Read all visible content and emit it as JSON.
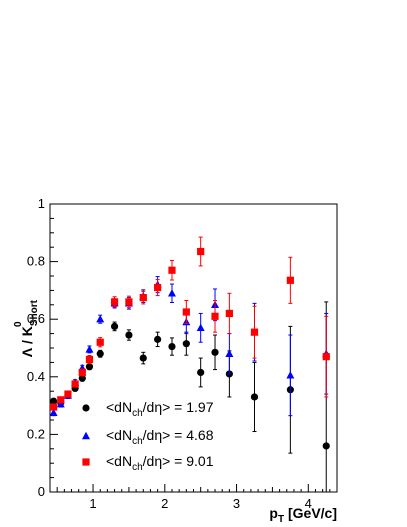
{
  "chart_data": {
    "type": "scatter",
    "title": "",
    "xlabel": "p_T [GeV/c]",
    "ylabel": "Λ / K⁰_Short",
    "xlim": [
      0.4,
      4.4
    ],
    "ylim": [
      0,
      1
    ],
    "x_ticks": [
      1,
      2,
      3,
      4
    ],
    "y_ticks": [
      0,
      0.2,
      0.4,
      0.6,
      0.8,
      1
    ],
    "y_tick_labels": [
      "0",
      "0.2",
      "0.4",
      "0.6",
      "0.8",
      "1"
    ],
    "grid": false,
    "legend_position": "bottom-left",
    "series": [
      {
        "name": "<dN_ch/dη> = 1.97",
        "marker": "circle",
        "color": "#000000",
        "x": [
          0.45,
          0.55,
          0.65,
          0.75,
          0.85,
          0.95,
          1.1,
          1.3,
          1.5,
          1.7,
          1.9,
          2.1,
          2.3,
          2.5,
          2.7,
          2.9,
          3.25,
          3.75,
          4.25
        ],
        "y": [
          0.315,
          0.31,
          0.335,
          0.36,
          0.395,
          0.435,
          0.48,
          0.575,
          0.545,
          0.465,
          0.53,
          0.505,
          0.515,
          0.415,
          0.485,
          0.41,
          0.33,
          0.355,
          0.16
        ],
        "err": [
          0.01,
          0.01,
          0.01,
          0.01,
          0.01,
          0.01,
          0.012,
          0.015,
          0.018,
          0.02,
          0.025,
          0.03,
          0.04,
          0.05,
          0.06,
          0.08,
          0.12,
          0.22,
          0.5
        ]
      },
      {
        "name": "<dN_ch/dη> = 4.68",
        "marker": "triangle",
        "color": "#0000ff",
        "x": [
          0.45,
          0.55,
          0.65,
          0.75,
          0.85,
          0.95,
          1.1,
          1.3,
          1.5,
          1.7,
          1.9,
          2.1,
          2.3,
          2.5,
          2.7,
          2.9,
          3.25,
          3.75,
          4.25
        ],
        "y": [
          0.275,
          0.305,
          0.335,
          0.38,
          0.43,
          0.495,
          0.6,
          0.655,
          0.655,
          0.68,
          0.72,
          0.69,
          0.59,
          0.57,
          0.65,
          0.48,
          0.555,
          0.405,
          0.48
        ],
        "err": [
          0.01,
          0.01,
          0.01,
          0.01,
          0.01,
          0.012,
          0.014,
          0.016,
          0.02,
          0.022,
          0.028,
          0.032,
          0.04,
          0.05,
          0.055,
          0.07,
          0.1,
          0.14,
          0.14
        ]
      },
      {
        "name": "<dN_ch/dη> = 9.01",
        "marker": "square",
        "color": "#ff0000",
        "x": [
          0.45,
          0.55,
          0.65,
          0.75,
          0.85,
          0.95,
          1.1,
          1.3,
          1.5,
          1.7,
          1.9,
          2.1,
          2.3,
          2.5,
          2.7,
          2.9,
          3.25,
          3.75,
          4.25
        ],
        "y": [
          0.295,
          0.32,
          0.34,
          0.375,
          0.415,
          0.46,
          0.52,
          0.66,
          0.66,
          0.675,
          0.71,
          0.77,
          0.625,
          0.835,
          0.61,
          0.62,
          0.555,
          0.735,
          0.47
        ],
        "err": [
          0.01,
          0.01,
          0.01,
          0.01,
          0.012,
          0.014,
          0.016,
          0.018,
          0.02,
          0.022,
          0.028,
          0.034,
          0.04,
          0.05,
          0.055,
          0.07,
          0.09,
          0.08,
          0.14
        ]
      }
    ]
  }
}
